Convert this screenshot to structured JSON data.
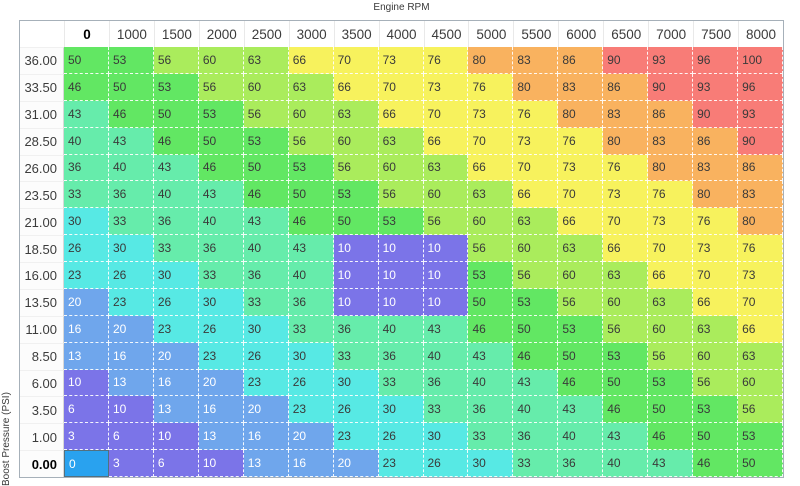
{
  "chart_data": {
    "type": "heatmap",
    "x_label": "Engine RPM",
    "y_label": "Boost Pressure (PSI)",
    "columns": [
      "0",
      "1000",
      "1500",
      "2000",
      "2500",
      "3000",
      "3500",
      "4000",
      "4500",
      "5000",
      "5500",
      "6000",
      "6500",
      "7000",
      "7500",
      "8000"
    ],
    "rows": [
      "36.00",
      "33.50",
      "31.00",
      "28.50",
      "26.00",
      "23.50",
      "21.00",
      "18.50",
      "16.00",
      "13.50",
      "11.00",
      "8.50",
      "6.00",
      "3.50",
      "1.00",
      "0.00"
    ],
    "values": [
      [
        50,
        53,
        56,
        60,
        63,
        66,
        70,
        73,
        76,
        80,
        83,
        86,
        90,
        93,
        96,
        100
      ],
      [
        46,
        50,
        53,
        56,
        60,
        63,
        66,
        70,
        73,
        76,
        80,
        83,
        86,
        90,
        93,
        96
      ],
      [
        43,
        46,
        50,
        53,
        56,
        60,
        63,
        66,
        70,
        73,
        76,
        80,
        83,
        86,
        90,
        93
      ],
      [
        40,
        43,
        46,
        50,
        53,
        56,
        60,
        63,
        66,
        70,
        73,
        76,
        80,
        83,
        86,
        90
      ],
      [
        36,
        40,
        43,
        46,
        50,
        53,
        56,
        60,
        63,
        66,
        70,
        73,
        76,
        80,
        83,
        86
      ],
      [
        33,
        36,
        40,
        43,
        46,
        50,
        53,
        56,
        60,
        63,
        66,
        70,
        73,
        76,
        80,
        83
      ],
      [
        30,
        33,
        36,
        40,
        43,
        46,
        50,
        53,
        56,
        60,
        63,
        66,
        70,
        73,
        76,
        80
      ],
      [
        26,
        30,
        33,
        36,
        40,
        43,
        10,
        10,
        10,
        56,
        60,
        63,
        66,
        70,
        73,
        76
      ],
      [
        23,
        26,
        30,
        33,
        36,
        40,
        10,
        10,
        10,
        53,
        56,
        60,
        63,
        66,
        70,
        73
      ],
      [
        20,
        23,
        26,
        30,
        33,
        36,
        10,
        10,
        10,
        50,
        53,
        56,
        60,
        63,
        66,
        70
      ],
      [
        16,
        20,
        23,
        26,
        30,
        33,
        36,
        40,
        43,
        46,
        50,
        53,
        56,
        60,
        63,
        66
      ],
      [
        13,
        16,
        20,
        23,
        26,
        30,
        33,
        36,
        40,
        43,
        46,
        50,
        53,
        56,
        60,
        63
      ],
      [
        10,
        13,
        16,
        20,
        23,
        26,
        30,
        33,
        36,
        40,
        43,
        46,
        50,
        53,
        56,
        60
      ],
      [
        6,
        10,
        13,
        16,
        20,
        23,
        26,
        30,
        33,
        36,
        40,
        43,
        46,
        50,
        53,
        56
      ],
      [
        3,
        6,
        10,
        13,
        16,
        20,
        23,
        26,
        30,
        33,
        36,
        40,
        43,
        46,
        50,
        53
      ],
      [
        0,
        3,
        6,
        10,
        13,
        16,
        20,
        23,
        26,
        30,
        33,
        36,
        40,
        43,
        46,
        50
      ]
    ],
    "selected_cell": {
      "row": "0.00",
      "column": "0",
      "value": 0
    },
    "override_block": {
      "rows": [
        "18.50",
        "16.00",
        "13.50"
      ],
      "columns": [
        "3500",
        "4000",
        "4500"
      ],
      "value": 10
    }
  },
  "color_scale": [
    {
      "max": 10,
      "color": "#7b74e8",
      "text": "#ffffff"
    },
    {
      "max": 20,
      "color": "#6fa6ec",
      "text": "#ffffff"
    },
    {
      "max": 30,
      "color": "#57e9e4",
      "text": "#3a3a3a"
    },
    {
      "max": 43,
      "color": "#66ecab",
      "text": "#3a3a3a"
    },
    {
      "max": 53,
      "color": "#62e763",
      "text": "#3a3a3a"
    },
    {
      "max": 63,
      "color": "#aaec5c",
      "text": "#3a3a3a"
    },
    {
      "max": 76,
      "color": "#f7f25d",
      "text": "#3a3a3a"
    },
    {
      "max": 86,
      "color": "#f9b25f",
      "text": "#3a3a3a"
    },
    {
      "max": 100,
      "color": "#f87c77",
      "text": "#3a3a3a"
    }
  ],
  "selection": {
    "fill": "#29a2ef",
    "text": "#ffffff"
  }
}
